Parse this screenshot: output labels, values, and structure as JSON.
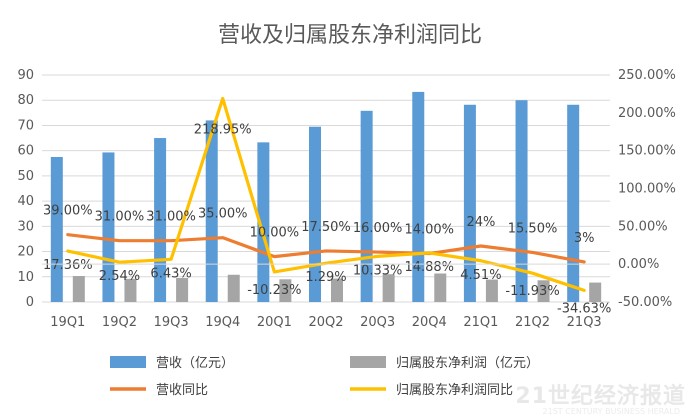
{
  "chart_data": {
    "type": "bar",
    "title": "营收及归属股东净利润同比",
    "categories": [
      "19Q1",
      "19Q2",
      "19Q3",
      "19Q4",
      "20Q1",
      "20Q2",
      "20Q3",
      "20Q4",
      "21Q1",
      "21Q2",
      "21Q3"
    ],
    "left_axis": {
      "min": 0,
      "max": 90,
      "step": 10
    },
    "right_axis": {
      "min": -50,
      "max": 250,
      "step": 50,
      "format": "percent2"
    },
    "series": [
      {
        "name": "营收（亿元）",
        "kind": "bar",
        "axis": "left",
        "color": "#5b9bd5",
        "values": [
          57.5,
          59.3,
          65.0,
          72.0,
          63.3,
          69.5,
          75.8,
          83.3,
          78.2,
          80.0,
          78.2
        ]
      },
      {
        "name": "归属股东净利润（亿元）",
        "kind": "bar",
        "axis": "left",
        "color": "#a5a5a5",
        "values": [
          10.3,
          9.2,
          9.5,
          10.8,
          9.0,
          9.3,
          11.0,
          11.3,
          8.9,
          8.6,
          7.7
        ]
      },
      {
        "name": "营收同比",
        "kind": "line",
        "axis": "right",
        "color": "#ed7d31",
        "values": [
          39.0,
          31.0,
          31.0,
          35.0,
          10.0,
          17.5,
          16.0,
          14.0,
          24.0,
          15.5,
          3.0
        ]
      },
      {
        "name": "归属股东净利润同比",
        "kind": "line",
        "axis": "right",
        "color": "#ffc000",
        "values": [
          17.36,
          2.54,
          6.43,
          218.95,
          -10.23,
          1.29,
          10.33,
          14.88,
          4.51,
          -11.93,
          -34.63
        ]
      }
    ],
    "data_labels": {
      "revenue_yoy": [
        "39.00%",
        "31.00%",
        "31.00%",
        "35.00%",
        "10.00%",
        "17.50%",
        "16.00%",
        "14.00%",
        "24%",
        "15.50%",
        "3%"
      ],
      "profit_yoy": [
        "17.36%",
        "2.54%",
        "6.43%",
        "218.95%",
        "-10.23%",
        "1.29%",
        "10.33%",
        "14.88%",
        "4.51%",
        "-11.93%",
        "-34.63%"
      ]
    },
    "legend_position": "bottom",
    "grid": true
  },
  "watermark": {
    "text": "21世纪经济报道",
    "subtext": "21ST CENTURY BUSINESS HERALD"
  }
}
